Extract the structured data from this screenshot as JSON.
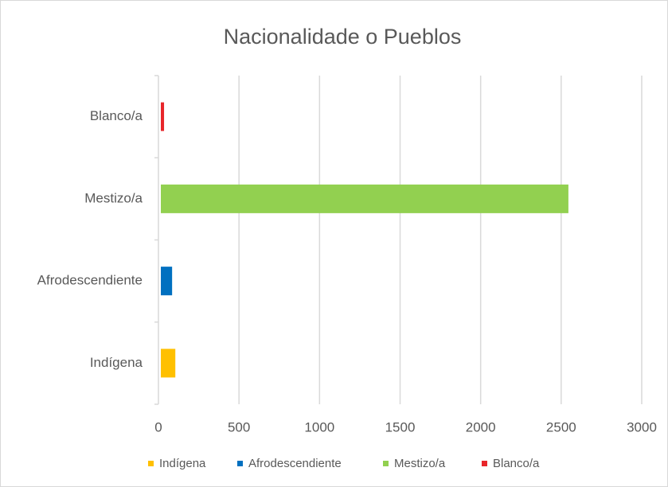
{
  "chart_data": {
    "type": "bar",
    "orientation": "horizontal",
    "title": "Nacionalidade o Pueblos",
    "categories": [
      "Indígena",
      "Afrodescendiente",
      "Mestizo/a",
      "Blanco/a"
    ],
    "values": [
      90,
      70,
      2530,
      20
    ],
    "colors": [
      "#ffc000",
      "#0070c0",
      "#92d050",
      "#e8262a"
    ],
    "xlim": [
      0,
      3000
    ],
    "xticks": [
      0,
      500,
      1000,
      1500,
      2000,
      2500,
      3000
    ],
    "grid": true,
    "legend": "bottom"
  }
}
